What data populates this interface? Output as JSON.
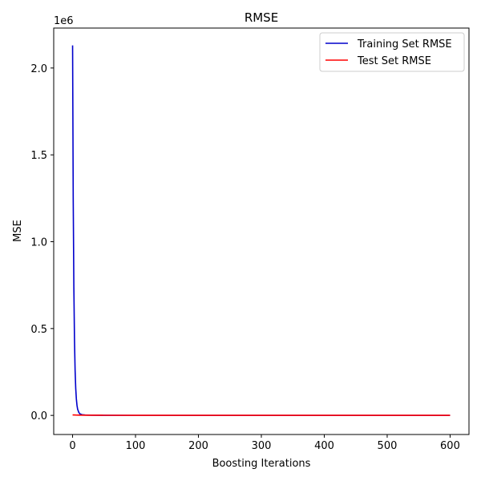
{
  "chart_data": {
    "type": "line",
    "title": "RMSE",
    "xlabel": "Boosting Iterations",
    "ylabel": "MSE",
    "y_offset_label": "1e6",
    "xlim": [
      -30,
      630
    ],
    "ylim": [
      -0.11,
      2.23
    ],
    "x_ticks": [
      {
        "value": 0,
        "label": "0"
      },
      {
        "value": 100,
        "label": "100"
      },
      {
        "value": 200,
        "label": "200"
      },
      {
        "value": 300,
        "label": "300"
      },
      {
        "value": 400,
        "label": "400"
      },
      {
        "value": 500,
        "label": "500"
      },
      {
        "value": 600,
        "label": "600"
      }
    ],
    "y_ticks": [
      {
        "value": 0.0,
        "label": "0.0"
      },
      {
        "value": 0.5,
        "label": "0.5"
      },
      {
        "value": 1.0,
        "label": "1.0"
      },
      {
        "value": 1.5,
        "label": "1.5"
      },
      {
        "value": 2.0,
        "label": "2.0"
      }
    ],
    "grid": false,
    "legend_position": "top-right",
    "series": [
      {
        "name": "Training Set RMSE",
        "color": "#0000cc",
        "x": [
          0,
          1,
          2,
          3,
          4,
          5,
          6,
          7,
          8,
          10,
          12,
          15,
          20,
          30,
          50,
          100,
          200,
          300,
          400,
          500,
          600
        ],
        "y": [
          2.13,
          1.25,
          0.74,
          0.44,
          0.26,
          0.155,
          0.095,
          0.058,
          0.036,
          0.016,
          0.008,
          0.004,
          0.002,
          0.0008,
          0.0004,
          0.0002,
          0.0001,
          0.0001,
          0.0001,
          0.0001,
          0.0001
        ]
      },
      {
        "name": "Test Set RMSE",
        "color": "#ff0000",
        "x": [
          0,
          5,
          10,
          20,
          50,
          100,
          200,
          300,
          400,
          500,
          600
        ],
        "y": [
          0.003,
          0.002,
          0.0015,
          0.001,
          0.0008,
          0.0006,
          0.0005,
          0.0005,
          0.0005,
          0.0005,
          0.0005
        ]
      }
    ]
  }
}
